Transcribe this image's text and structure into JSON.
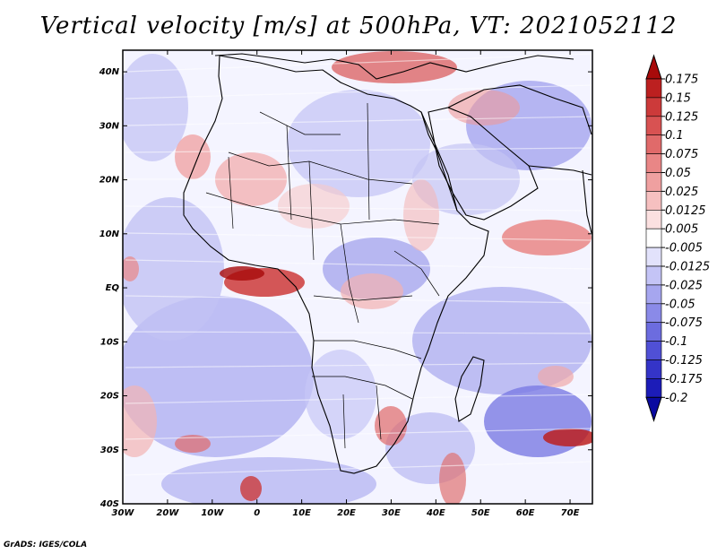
{
  "title": "Vertical velocity [m/s] at 500hPa, VT: 2021052112",
  "credit": "GrADS: IGES/COLA",
  "map": {
    "projection": "latlon",
    "lon_range": [
      -30,
      75
    ],
    "lat_range": [
      -40,
      44
    ],
    "variable": "Vertical velocity",
    "units": "m/s",
    "level": "500hPa",
    "valid_time": "2021052112",
    "lat_labels": [
      {
        "value": 40,
        "text": "40N"
      },
      {
        "value": 30,
        "text": "30N"
      },
      {
        "value": 20,
        "text": "20N"
      },
      {
        "value": 10,
        "text": "10N"
      },
      {
        "value": 0,
        "text": "EQ"
      },
      {
        "value": -10,
        "text": "10S"
      },
      {
        "value": -20,
        "text": "20S"
      },
      {
        "value": -30,
        "text": "30S"
      },
      {
        "value": -40,
        "text": "40S"
      }
    ],
    "lon_labels": [
      {
        "value": -30,
        "text": "30W"
      },
      {
        "value": -20,
        "text": "20W"
      },
      {
        "value": -10,
        "text": "10W"
      },
      {
        "value": 0,
        "text": "0"
      },
      {
        "value": 10,
        "text": "10E"
      },
      {
        "value": 20,
        "text": "20E"
      },
      {
        "value": 30,
        "text": "30E"
      },
      {
        "value": 40,
        "text": "40E"
      },
      {
        "value": 50,
        "text": "50E"
      },
      {
        "value": 60,
        "text": "60E"
      },
      {
        "value": 70,
        "text": "70E"
      }
    ]
  },
  "colorbar": {
    "labels": [
      "0.175",
      "0.15",
      "0.125",
      "0.1",
      "0.075",
      "0.05",
      "0.025",
      "0.0125",
      "0.005",
      "-0.005",
      "-0.0125",
      "-0.025",
      "-0.05",
      "-0.075",
      "-0.1",
      "-0.125",
      "-0.175",
      "-0.2"
    ],
    "colors": [
      "#a80a0a",
      "#bc2020",
      "#cc3a3a",
      "#d85252",
      "#e06a6a",
      "#e98686",
      "#efa0a0",
      "#f6c0c0",
      "#fbe0e0",
      "#ffffff",
      "#e2e2fb",
      "#c4c4f6",
      "#a6a6ef",
      "#8a8ae8",
      "#6c6cdf",
      "#5050d6",
      "#3434c8",
      "#1c1cb8",
      "#0a0aa0"
    ]
  }
}
